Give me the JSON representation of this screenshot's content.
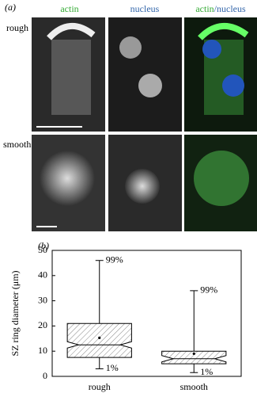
{
  "panel_a": {
    "label": "(a)",
    "columns": [
      "actin",
      "nucleus"
    ],
    "merge": {
      "first": "actin",
      "sep": "/",
      "second": "nucleus"
    },
    "rows": [
      "rough",
      "smooth"
    ]
  },
  "chart_data": {
    "type": "box",
    "label": "(b)",
    "ylabel": "SZ ring diameter (μm)",
    "categories": [
      "rough",
      "smooth"
    ],
    "boxes": [
      {
        "low": 3,
        "q1": 7.5,
        "median": 12.5,
        "q3": 21,
        "high": 46,
        "mean": 15.3
      },
      {
        "low": 1.5,
        "q1": 5,
        "median": 7,
        "q3": 10,
        "high": 34,
        "mean": 9
      }
    ],
    "whisker_labels": {
      "high": "99%",
      "low": "1%"
    },
    "ylim": [
      0,
      50
    ],
    "yticks": [
      0,
      10,
      20,
      30,
      40,
      50
    ]
  }
}
